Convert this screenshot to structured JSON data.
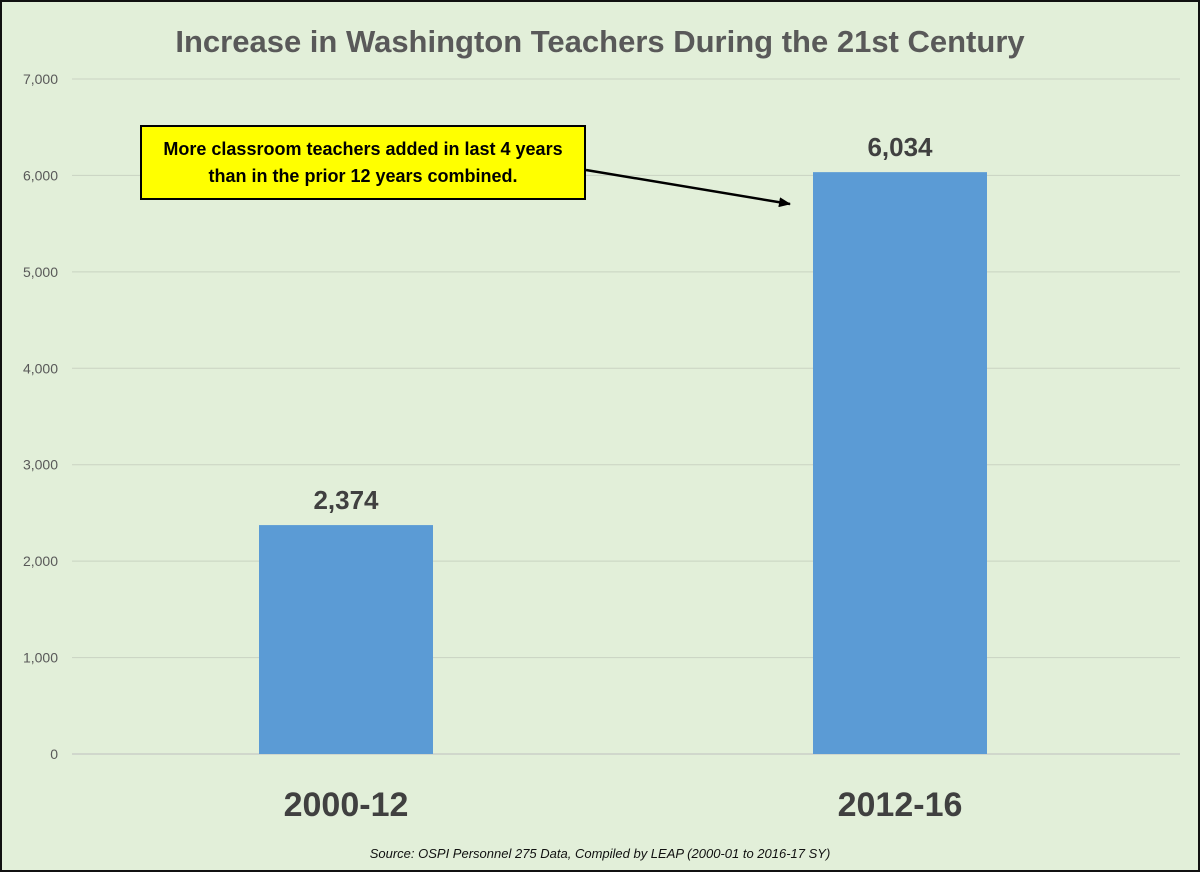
{
  "chart_data": {
    "type": "bar",
    "title": "Increase in Washington Teachers During the 21st Century",
    "categories": [
      "2000-12",
      "2012-16"
    ],
    "values": [
      2374,
      6034
    ],
    "data_labels": [
      "2,374",
      "6,034"
    ],
    "ylim": [
      0,
      7000
    ],
    "yticks": [
      0,
      1000,
      2000,
      3000,
      4000,
      5000,
      6000,
      7000
    ],
    "ytick_labels": [
      "0",
      "1,000",
      "2,000",
      "3,000",
      "4,000",
      "5,000",
      "6,000",
      "7,000"
    ],
    "grid": true,
    "bar_color": "#5b9bd5",
    "annotation": {
      "lines": [
        "More classroom teachers added in last 4 years",
        "than in the prior 12 years combined."
      ],
      "background": "#ffff00",
      "points_to": "2012-16"
    },
    "source": "Source: OSPI Personnel 275 Data, Compiled by LEAP (2000-01 to 2016-17 SY)"
  }
}
